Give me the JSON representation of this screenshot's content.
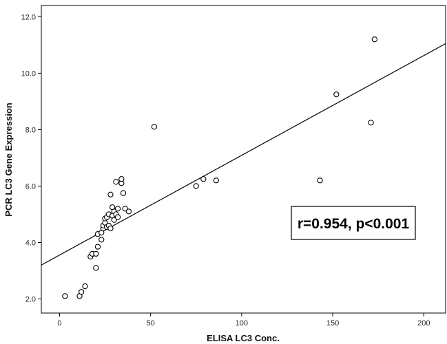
{
  "chart_data": {
    "type": "scatter",
    "xlabel": "ELISA LC3 Conc.",
    "ylabel": "PCR LC3 Gene Expression",
    "xlim": [
      -10,
      212
    ],
    "ylim": [
      1.5,
      12.4
    ],
    "x_ticks": [
      0,
      50,
      100,
      150,
      200
    ],
    "x_tick_labels": [
      "0",
      "50",
      "100",
      "150",
      "200"
    ],
    "y_ticks": [
      2.0,
      4.0,
      6.0,
      8.0,
      10.0,
      12.0
    ],
    "y_tick_labels": [
      "2.0",
      "4.0",
      "6.0",
      "8.0",
      "10.0",
      "12.0"
    ],
    "grid": false,
    "series": [
      {
        "marker": "open-circle",
        "x": [
          3,
          11,
          12,
          14,
          17,
          18,
          20,
          20,
          21,
          21,
          23,
          23,
          24,
          24,
          25,
          25,
          26,
          26,
          27,
          27,
          28,
          28,
          29,
          29,
          30,
          30,
          31,
          31,
          32,
          32,
          34,
          34,
          35,
          36,
          38,
          52,
          75,
          79,
          86,
          143,
          152,
          171,
          173
        ],
        "y": [
          2.1,
          2.1,
          2.25,
          2.45,
          3.5,
          3.6,
          3.1,
          3.6,
          3.85,
          4.3,
          4.1,
          4.35,
          4.5,
          4.6,
          4.7,
          4.85,
          4.9,
          4.55,
          5.0,
          4.6,
          4.5,
          5.7,
          4.95,
          5.25,
          5.1,
          4.8,
          6.15,
          5.0,
          5.2,
          4.9,
          6.1,
          6.25,
          5.75,
          5.2,
          5.1,
          8.1,
          6.0,
          6.25,
          6.2,
          6.2,
          9.25,
          8.25,
          11.2
        ]
      }
    ],
    "fit_line": {
      "type": "linear",
      "x": [
        -10,
        212
      ],
      "y": [
        3.2,
        11.05
      ]
    },
    "annotation": {
      "text": "r=0.954, p<0.001"
    }
  }
}
